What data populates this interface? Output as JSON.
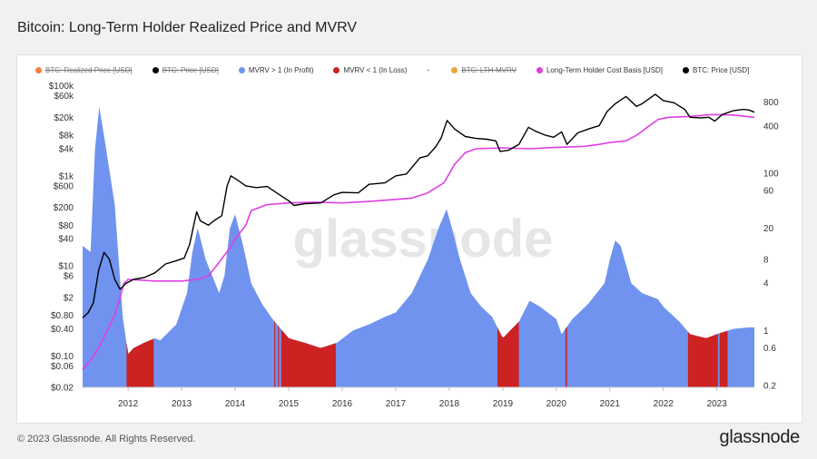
{
  "page": {
    "title": "Bitcoin: Long-Term Holder Realized Price and MVRV",
    "footer": "© 2023 Glassnode. All Rights Reserved.",
    "brand": "glassnode",
    "watermark": "glassnode"
  },
  "legend": [
    {
      "label": "BTC: Realized Price [USD]",
      "color": "#f07f3c",
      "struck": true
    },
    {
      "label": "BTC: Price [USD]",
      "color": "#000000",
      "struck": true
    },
    {
      "label": "MVRV > 1 (In Profit)",
      "color": "#6f93ef",
      "struck": false
    },
    {
      "label": "MVRV < 1 (In Loss)",
      "color": "#cc2222",
      "struck": false
    },
    {
      "label": "-",
      "color": "",
      "struck": false,
      "dash": true
    },
    {
      "label": "BTC: LTH-MVRV",
      "color": "#f0a33c",
      "struck": true
    },
    {
      "label": "Long-Term Holder Cost Basis [USD]",
      "color": "#e03ee0",
      "struck": false
    },
    {
      "label": "BTC: Price [USD]",
      "color": "#000000",
      "struck": false
    }
  ],
  "chart_data": {
    "type": "line",
    "title": "Bitcoin: Long-Term Holder Realized Price and MVRV",
    "x_range": [
      2011.15,
      2023.7
    ],
    "x_ticks": [
      "2012",
      "2013",
      "2014",
      "2015",
      "2016",
      "2017",
      "2018",
      "2019",
      "2020",
      "2021",
      "2022",
      "2023"
    ],
    "y_left": {
      "scale": "log",
      "range": [
        0.02,
        130000
      ],
      "ticks": [
        {
          "v": 100000,
          "label": "$100k"
        },
        {
          "v": 60000,
          "label": "$60k"
        },
        {
          "v": 20000,
          "label": "$20k"
        },
        {
          "v": 8000,
          "label": "$8k"
        },
        {
          "v": 4000,
          "label": "$4k"
        },
        {
          "v": 1000,
          "label": "$1k"
        },
        {
          "v": 600,
          "label": "$600"
        },
        {
          "v": 200,
          "label": "$200"
        },
        {
          "v": 80,
          "label": "$80"
        },
        {
          "v": 40,
          "label": "$40"
        },
        {
          "v": 10,
          "label": "$10"
        },
        {
          "v": 6,
          "label": "$6"
        },
        {
          "v": 2,
          "label": "$2"
        },
        {
          "v": 0.8,
          "label": "$0.80"
        },
        {
          "v": 0.4,
          "label": "$0.40"
        },
        {
          "v": 0.1,
          "label": "$0.10"
        },
        {
          "v": 0.06,
          "label": "$0.06"
        },
        {
          "v": 0.02,
          "label": "$0.02"
        }
      ]
    },
    "y_right": {
      "scale": "log",
      "range": [
        0.19,
        1500
      ],
      "ticks": [
        {
          "v": 800,
          "label": "800"
        },
        {
          "v": 400,
          "label": "400"
        },
        {
          "v": 100,
          "label": "100"
        },
        {
          "v": 60,
          "label": "60"
        },
        {
          "v": 20,
          "label": "20"
        },
        {
          "v": 8,
          "label": "8"
        },
        {
          "v": 4,
          "label": "4"
        },
        {
          "v": 1,
          "label": "1"
        },
        {
          "v": 0.6,
          "label": "0.6"
        },
        {
          "v": 0.2,
          "label": "0.2"
        }
      ]
    },
    "series": [
      {
        "name": "BTC: Price [USD]",
        "axis": "left",
        "color": "#000000",
        "x": [
          2011.15,
          2011.25,
          2011.35,
          2011.45,
          2011.55,
          2011.65,
          2011.75,
          2011.85,
          2011.95,
          2012.1,
          2012.3,
          2012.5,
          2012.7,
          2012.9,
          2013.05,
          2013.15,
          2013.28,
          2013.35,
          2013.5,
          2013.6,
          2013.75,
          2013.85,
          2013.92,
          2014.05,
          2014.2,
          2014.4,
          2014.6,
          2014.8,
          2015.0,
          2015.1,
          2015.3,
          2015.6,
          2015.85,
          2016.0,
          2016.3,
          2016.5,
          2016.8,
          2017.0,
          2017.2,
          2017.45,
          2017.6,
          2017.75,
          2017.85,
          2017.96,
          2018.1,
          2018.3,
          2018.5,
          2018.7,
          2018.87,
          2018.95,
          2019.1,
          2019.3,
          2019.48,
          2019.6,
          2019.8,
          2019.95,
          2020.1,
          2020.2,
          2020.4,
          2020.6,
          2020.8,
          2020.95,
          2021.1,
          2021.3,
          2021.5,
          2021.6,
          2021.85,
          2022.0,
          2022.2,
          2022.4,
          2022.5,
          2022.7,
          2022.85,
          2022.96,
          2023.1,
          2023.3,
          2023.5,
          2023.6,
          2023.7
        ],
        "y": [
          0.7,
          0.9,
          1.5,
          8,
          20,
          14,
          5,
          3,
          4,
          5,
          5.5,
          7,
          11,
          13,
          15,
          30,
          160,
          100,
          80,
          100,
          130,
          600,
          1000,
          800,
          600,
          550,
          580,
          400,
          280,
          220,
          240,
          250,
          380,
          430,
          420,
          650,
          700,
          1000,
          1100,
          2500,
          2800,
          4500,
          7000,
          17000,
          11000,
          7500,
          6800,
          6500,
          6000,
          3500,
          3700,
          5000,
          12000,
          10000,
          8000,
          7200,
          9500,
          5000,
          9000,
          11000,
          13000,
          27000,
          40000,
          58000,
          35000,
          40000,
          65000,
          47000,
          42000,
          30000,
          20000,
          19500,
          20000,
          16500,
          23000,
          28000,
          30000,
          29000,
          26000
        ]
      },
      {
        "name": "Long-Term Holder Cost Basis [USD]",
        "axis": "left",
        "color": "#e03ee0",
        "x": [
          2011.15,
          2011.3,
          2011.45,
          2011.6,
          2011.75,
          2011.85,
          2011.92,
          2012.0,
          2012.5,
          2013.0,
          2013.3,
          2013.5,
          2013.7,
          2013.9,
          2014.0,
          2014.2,
          2014.3,
          2014.6,
          2015.0,
          2015.5,
          2016.0,
          2016.5,
          2017.0,
          2017.3,
          2017.6,
          2017.9,
          2018.1,
          2018.3,
          2018.5,
          2019.0,
          2019.5,
          2020.0,
          2020.5,
          2020.8,
          2021.0,
          2021.3,
          2021.5,
          2021.7,
          2021.9,
          2022.1,
          2022.5,
          2022.9,
          2023.3,
          2023.7
        ],
        "y": [
          0.05,
          0.08,
          0.15,
          0.35,
          0.8,
          2,
          4,
          5,
          4.6,
          4.6,
          5,
          6,
          12,
          25,
          40,
          80,
          170,
          230,
          250,
          260,
          250,
          270,
          300,
          320,
          420,
          700,
          1800,
          3300,
          4000,
          4200,
          4000,
          4300,
          4500,
          5000,
          5500,
          6000,
          8000,
          12000,
          18000,
          20000,
          21000,
          23000,
          22500,
          20000
        ]
      },
      {
        "name": "MVRV",
        "axis": "right",
        "color": "#6f93ef",
        "x": [
          2011.15,
          2011.3,
          2011.38,
          2011.46,
          2011.55,
          2011.75,
          2011.9,
          2012.0,
          2012.1,
          2012.3,
          2012.5,
          2012.6,
          2012.9,
          2013.1,
          2013.2,
          2013.3,
          2013.45,
          2013.7,
          2013.8,
          2013.9,
          2014.0,
          2014.15,
          2014.3,
          2014.5,
          2014.7,
          2015.0,
          2015.3,
          2015.6,
          2015.9,
          2016.2,
          2016.5,
          2016.8,
          2017.0,
          2017.3,
          2017.6,
          2017.8,
          2017.95,
          2018.05,
          2018.2,
          2018.4,
          2018.6,
          2018.8,
          2019.0,
          2019.3,
          2019.5,
          2019.7,
          2020.0,
          2020.1,
          2020.3,
          2020.6,
          2020.9,
          2021.0,
          2021.1,
          2021.2,
          2021.4,
          2021.6,
          2021.9,
          2022.0,
          2022.3,
          2022.5,
          2022.8,
          2023.0,
          2023.3,
          2023.6,
          2023.7
        ],
        "y": [
          12,
          10,
          200,
          700,
          300,
          40,
          1.5,
          0.5,
          0.6,
          0.7,
          0.8,
          0.75,
          1.2,
          3,
          10,
          20,
          8,
          3,
          5,
          20,
          30,
          12,
          4,
          2.2,
          1.4,
          0.8,
          0.7,
          0.6,
          0.7,
          1.0,
          1.2,
          1.5,
          1.7,
          3,
          8,
          20,
          35,
          20,
          8,
          3,
          2,
          1.5,
          0.8,
          1.3,
          2.4,
          2,
          1.4,
          0.9,
          1.4,
          2.2,
          4,
          8,
          14,
          12,
          4,
          3,
          2.5,
          2,
          1.3,
          0.9,
          0.8,
          0.9,
          1.05,
          1.1,
          1.1
        ]
      },
      {
        "name": "MVRV < 1 (In Loss)",
        "axis": "right",
        "color": "#cc2222",
        "periods": [
          [
            2011.97,
            2012.48
          ],
          [
            2014.73,
            2014.75
          ],
          [
            2014.8,
            2014.82
          ],
          [
            2014.86,
            2015.88
          ],
          [
            2018.9,
            2019.3
          ],
          [
            2020.17,
            2020.2
          ],
          [
            2022.46,
            2023.02
          ],
          [
            2023.05,
            2023.2
          ]
        ]
      }
    ]
  }
}
